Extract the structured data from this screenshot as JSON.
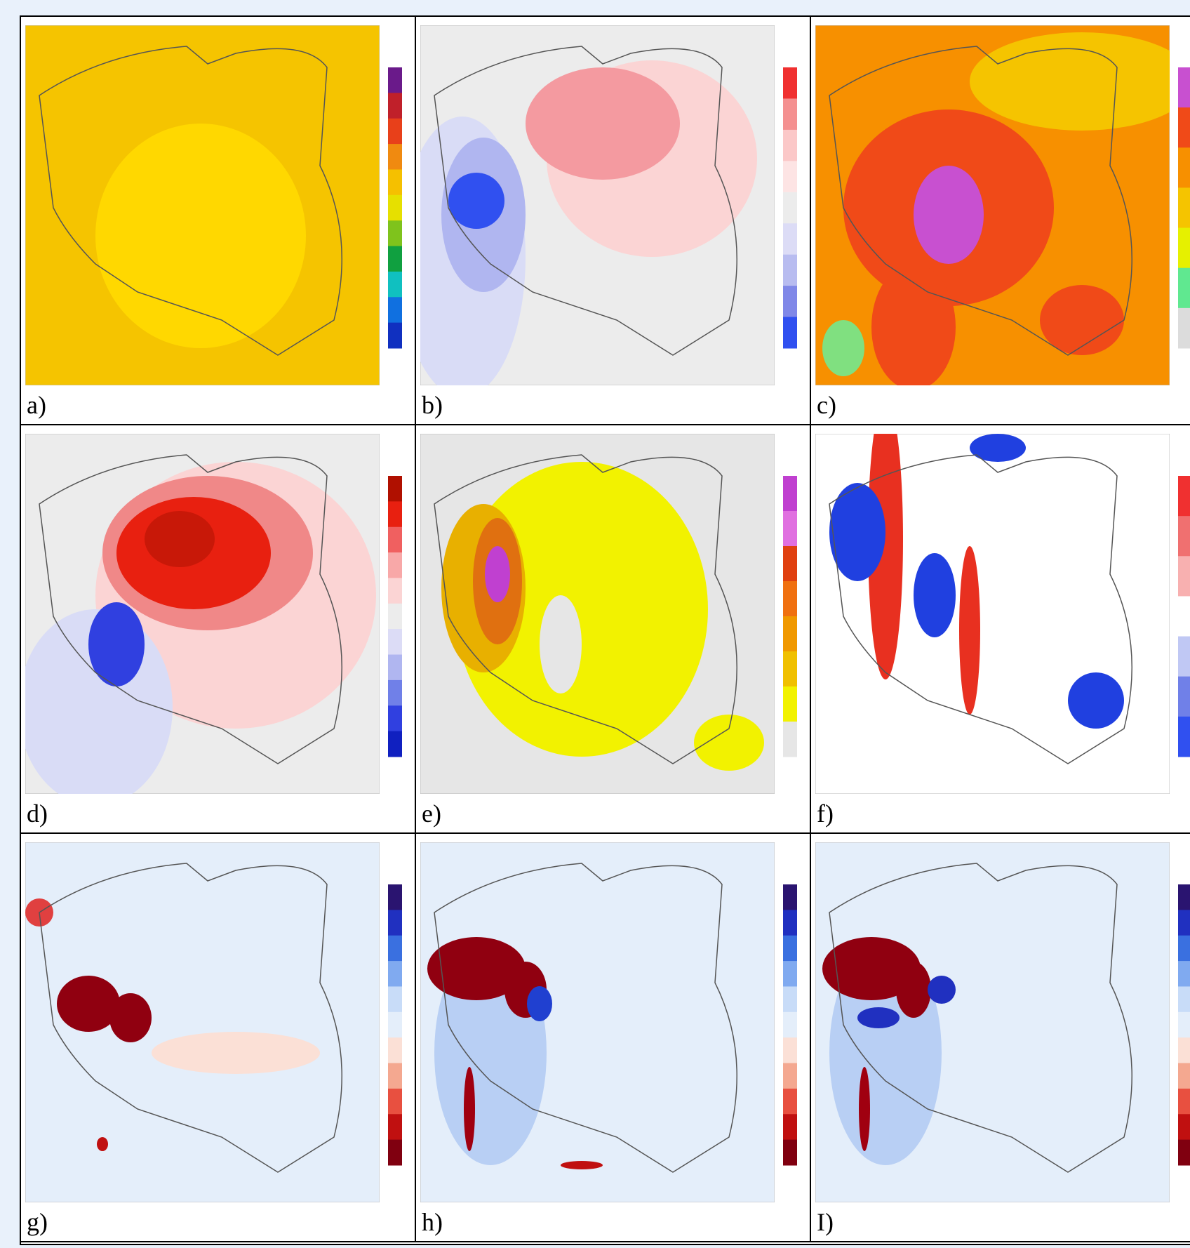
{
  "panels": [
    {
      "label": "a)"
    },
    {
      "label": "b)"
    },
    {
      "label": "c)"
    },
    {
      "label": "d)"
    },
    {
      "label": "e)"
    },
    {
      "label": "f)"
    },
    {
      "label": "g)"
    },
    {
      "label": "h)"
    },
    {
      "label": "I)"
    }
  ]
}
